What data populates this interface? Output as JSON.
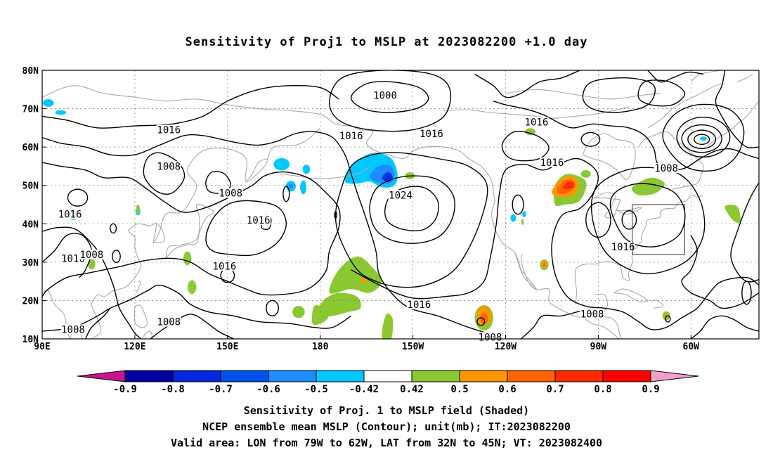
{
  "title": "Sensitivity of Proj1 to MSLP at 2023082200 +1.0 day",
  "map": {
    "lat_labels": [
      "80N",
      "70N",
      "60N",
      "50N",
      "40N",
      "30N",
      "20N",
      "10N"
    ],
    "lon_labels": [
      "90E",
      "120E",
      "150E",
      "180",
      "150W",
      "120W",
      "90W",
      "60W"
    ],
    "contour_labels": [
      {
        "text": "1000",
        "lon": 201,
        "lat": 73.5
      },
      {
        "text": "1016",
        "lon": 131,
        "lat": 64.5
      },
      {
        "text": "1016",
        "lon": 190,
        "lat": 63.0
      },
      {
        "text": "1016",
        "lon": 216,
        "lat": 63.5
      },
      {
        "text": "1016",
        "lon": 250,
        "lat": 66.5
      },
      {
        "text": "1008",
        "lon": 131,
        "lat": 55.0
      },
      {
        "text": "1008",
        "lon": 292,
        "lat": 54.5
      },
      {
        "text": "1016",
        "lon": 255,
        "lat": 56.0
      },
      {
        "text": "1008",
        "lon": 151,
        "lat": 48.0
      },
      {
        "text": "1024",
        "lon": 206,
        "lat": 47.5
      },
      {
        "text": "1016",
        "lon": 99,
        "lat": 42.5
      },
      {
        "text": "1016",
        "lon": 160,
        "lat": 41.0
      },
      {
        "text": "1016",
        "lon": 100,
        "lat": 31.0
      },
      {
        "text": "1008",
        "lon": 106,
        "lat": 32.0
      },
      {
        "text": "1016",
        "lon": 149,
        "lat": 29.0
      },
      {
        "text": "1016",
        "lon": 278,
        "lat": 34.0
      },
      {
        "text": "1016",
        "lon": 212,
        "lat": 19.0
      },
      {
        "text": "1008",
        "lon": 268,
        "lat": 16.5
      },
      {
        "text": "1008",
        "lon": 131,
        "lat": 14.5
      },
      {
        "text": "1008",
        "lon": 100,
        "lat": 12.5
      },
      {
        "text": "1008",
        "lon": 235,
        "lat": 10.5
      }
    ],
    "valid_box": {
      "lon_min": 281,
      "lon_max": 298,
      "lat_min": 32,
      "lat_max": 45
    },
    "colors": {
      "neg_light": "#00c8ff",
      "neg_mid": "#1e8cff",
      "neg_dark": "#0032e6",
      "pos_green": "#8cc832",
      "pos_orange": "#ff9600",
      "pos_dorange": "#ff6400",
      "pos_red": "#ff2800",
      "coast": "#a8a8a8",
      "contour": "#000000"
    }
  },
  "colorbar": {
    "labels": [
      "-0.9",
      "-0.8",
      "-0.7",
      "-0.6",
      "-0.5",
      "-0.42",
      "0.42",
      "0.5",
      "0.6",
      "0.7",
      "0.8",
      "0.9"
    ],
    "low_end_color": "#c8148c",
    "high_end_color": "#f0a0c8",
    "colors": [
      "#0000a0",
      "#0028dc",
      "#0050f0",
      "#1e8cff",
      "#00c8ff",
      "#ffffff",
      "#8cc832",
      "#ff9600",
      "#ff6400",
      "#ff2800",
      "#ff0000"
    ]
  },
  "captions": {
    "line1": "Sensitivity of Proj. 1 to MSLP field (Shaded)",
    "line2": "NCEP ensemble mean MSLP (Contour); unit(mb); IT:2023082200",
    "line3": "Valid area: LON from 79W to 62W, LAT from 32N to 45N; VT: 2023082400"
  }
}
